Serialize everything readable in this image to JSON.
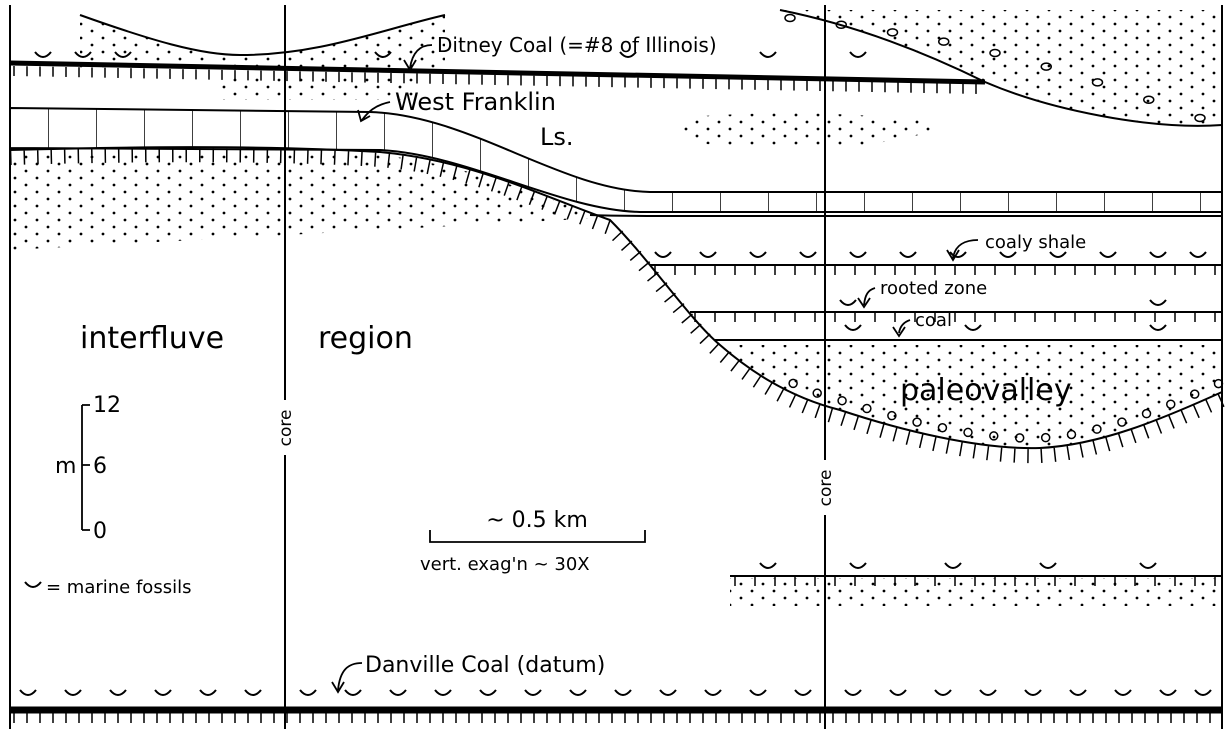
{
  "labels": {
    "ditney_coal": "Ditney Coal (=#8 of Illinois)",
    "west_franklin": "West Franklin",
    "ls": "Ls.",
    "coaly_shale": "coaly shale",
    "rooted_zone": "rooted zone",
    "coal": "coal",
    "interfluve": "interfluve",
    "region": "region",
    "paleovalley": "paleovalley",
    "danville_coal": "Danville Coal (datum)"
  },
  "cores": [
    "core",
    "core"
  ],
  "scale": {
    "unit": "m",
    "ticks": [
      12,
      6,
      0
    ],
    "horizontal": "~ 0.5 km",
    "exaggeration": "vert. exag'n ~ 30X"
  },
  "legend": "= marine fossils"
}
